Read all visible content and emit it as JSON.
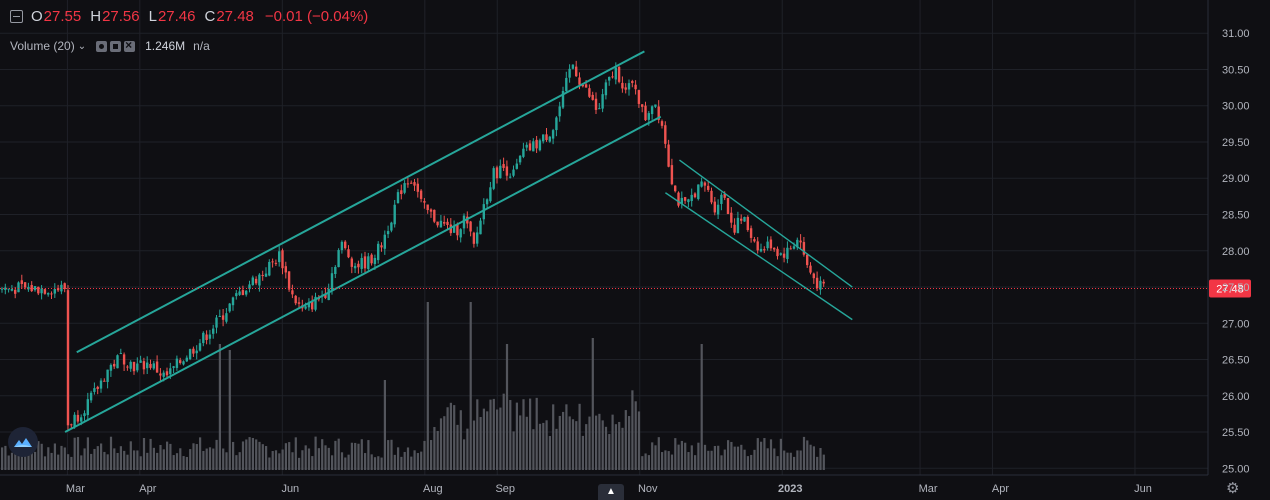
{
  "legend": {
    "open_label": "O",
    "open": "27.55",
    "high_label": "H",
    "high": "27.56",
    "low_label": "L",
    "low": "27.46",
    "close_label": "C",
    "close": "27.48",
    "change": "−0.01 (−0.04%)",
    "volume_indicator": "Volume (20)",
    "volume_value": "1.246M",
    "volume_ma": "n/a"
  },
  "price_tag": "27.48",
  "icons": {
    "collapse": "minus-box-icon",
    "logo": "cloud-logo-icon",
    "nav": "chevron-up-icon",
    "settings": "gear-icon"
  },
  "colors": {
    "up": "#26a69a",
    "down": "#ef5350",
    "channel": "#26a69a",
    "volume": "#53555c",
    "last_price": "#f23645",
    "background": "#0f0f13",
    "grid": "#1f2128"
  },
  "chart_data": {
    "type": "candlestick",
    "y_axis": {
      "ticks": [
        "25.00",
        "25.50",
        "26.00",
        "26.50",
        "27.00",
        "27.50",
        "28.00",
        "28.50",
        "29.00",
        "29.50",
        "30.00",
        "30.50",
        "31.00"
      ],
      "range": [
        24.97,
        31.05
      ],
      "side": "right"
    },
    "x_axis": {
      "ticks": [
        "Mar",
        "Apr",
        "Jun",
        "Aug",
        "Sep",
        "Nov",
        "2023",
        "Mar",
        "Apr",
        "Jun"
      ]
    },
    "grid": true,
    "last_price": 27.48,
    "price_path": [
      [
        "2022-03-01",
        25.6
      ],
      [
        "2022-03-06",
        25.75
      ],
      [
        "2022-03-12",
        26.0
      ],
      [
        "2022-03-18",
        26.35
      ],
      [
        "2022-03-24",
        26.55
      ],
      [
        "2022-03-30",
        26.4
      ],
      [
        "2022-04-05",
        26.45
      ],
      [
        "2022-04-12",
        26.25
      ],
      [
        "2022-04-19",
        26.5
      ],
      [
        "2022-04-27",
        26.75
      ],
      [
        "2022-05-05",
        27.05
      ],
      [
        "2022-05-12",
        27.35
      ],
      [
        "2022-05-18",
        27.55
      ],
      [
        "2022-05-24",
        27.7
      ],
      [
        "2022-05-31",
        27.95
      ],
      [
        "2022-06-05",
        27.4
      ],
      [
        "2022-06-10",
        27.15
      ],
      [
        "2022-06-15",
        27.3
      ],
      [
        "2022-06-20",
        27.45
      ],
      [
        "2022-06-26",
        28.1
      ],
      [
        "2022-07-02",
        27.8
      ],
      [
        "2022-07-08",
        27.85
      ],
      [
        "2022-07-13",
        28.05
      ],
      [
        "2022-07-18",
        28.5
      ],
      [
        "2022-07-23",
        28.95
      ],
      [
        "2022-07-27",
        29.0
      ],
      [
        "2022-07-31",
        28.6
      ],
      [
        "2022-08-05",
        28.45
      ],
      [
        "2022-08-09",
        28.35
      ],
      [
        "2022-08-14",
        28.25
      ],
      [
        "2022-08-18",
        28.45
      ],
      [
        "2022-08-22",
        28.05
      ],
      [
        "2022-08-26",
        28.6
      ],
      [
        "2022-08-30",
        29.05
      ],
      [
        "2022-09-04",
        29.15
      ],
      [
        "2022-09-08",
        29.05
      ],
      [
        "2022-09-12",
        29.35
      ],
      [
        "2022-09-17",
        29.45
      ],
      [
        "2022-09-21",
        29.55
      ],
      [
        "2022-09-25",
        29.7
      ],
      [
        "2022-09-29",
        30.1
      ],
      [
        "2022-10-03",
        30.6
      ],
      [
        "2022-10-07",
        30.3
      ],
      [
        "2022-10-11",
        30.1
      ],
      [
        "2022-10-14",
        29.9
      ],
      [
        "2022-10-18",
        30.3
      ],
      [
        "2022-10-22",
        30.5
      ],
      [
        "2022-10-26",
        30.2
      ],
      [
        "2022-10-30",
        30.3
      ],
      [
        "2022-11-03",
        29.8
      ],
      [
        "2022-11-07",
        30.1
      ],
      [
        "2022-11-11",
        29.7
      ],
      [
        "2022-11-14",
        29.1
      ],
      [
        "2022-11-17",
        28.7
      ],
      [
        "2022-11-21",
        28.6
      ],
      [
        "2022-11-25",
        28.85
      ],
      [
        "2022-11-29",
        28.9
      ],
      [
        "2022-12-03",
        28.6
      ],
      [
        "2022-12-07",
        28.8
      ],
      [
        "2022-12-11",
        28.3
      ],
      [
        "2022-12-15",
        28.45
      ],
      [
        "2022-12-19",
        28.2
      ],
      [
        "2022-12-23",
        28.0
      ],
      [
        "2022-12-27",
        28.1
      ],
      [
        "2022-12-31",
        27.95
      ],
      [
        "2023-01-04",
        28.0
      ],
      [
        "2023-01-08",
        28.2
      ],
      [
        "2023-01-12",
        27.75
      ],
      [
        "2023-01-17",
        27.5
      ],
      [
        "2023-01-19",
        27.48
      ]
    ],
    "trend_channels": [
      {
        "name": "",
        "lines": [
          [
            [
              "2022-03-05",
              26.6
            ],
            [
              "2022-11-03",
              30.75
            ]
          ],
          [
            [
              "2022-02-28",
              25.5
            ],
            [
              "2022-11-10",
              29.85
            ]
          ]
        ]
      },
      {
        "name": "",
        "lines": [
          [
            [
              "2022-11-18",
              29.25
            ],
            [
              "2023-01-31",
              27.5
            ]
          ],
          [
            [
              "2022-11-12",
              28.8
            ],
            [
              "2023-01-31",
              27.05
            ]
          ]
        ]
      }
    ],
    "volume": {
      "series_name": "Volume (20)",
      "spikes": [
        [
          "2022-05-05",
          1.05
        ],
        [
          "2022-05-10",
          1.0
        ],
        [
          "2022-07-15",
          0.75
        ],
        [
          "2022-08-02",
          1.4
        ],
        [
          "2022-08-20",
          1.4
        ],
        [
          "2022-09-05",
          1.05
        ],
        [
          "2022-10-12",
          1.1
        ],
        [
          "2022-11-28",
          1.05
        ]
      ]
    }
  }
}
